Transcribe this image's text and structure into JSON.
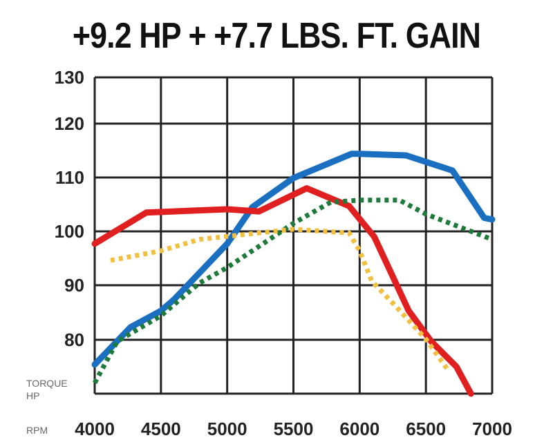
{
  "chart_data": {
    "type": "line",
    "title": "+9.2 HP + +7.7 LBS. FT. GAIN",
    "xlabel": "RPM",
    "ylabel_lines": [
      "TORQUE",
      "HP"
    ],
    "xlim": [
      4000,
      7000
    ],
    "ylim": [
      70,
      130
    ],
    "x_ticks": [
      "4000",
      "4500",
      "5000",
      "5500",
      "6000",
      "6500",
      "7000"
    ],
    "y_ticks": [
      "130",
      "120",
      "110",
      "100",
      "90",
      "80"
    ],
    "grid": true,
    "series": [
      {
        "color": "#1a6fc0",
        "style": "solid",
        "x": [
          4000,
          4270,
          4500,
          4600,
          5000,
          5190,
          5500,
          5940,
          6000,
          6350,
          6700,
          6940,
          7000
        ],
        "y": [
          75.4,
          82.3,
          85.3,
          87.4,
          97.7,
          104.5,
          109.9,
          114.4,
          114.4,
          114.1,
          111.3,
          102.5,
          102.2
        ]
      },
      {
        "color": "#e02020",
        "style": "solid",
        "x": [
          4000,
          4390,
          5000,
          5240,
          5600,
          5920,
          6110,
          6370,
          6540,
          6730,
          6840
        ],
        "y": [
          97.7,
          103.5,
          104.1,
          103.7,
          108.0,
          104.7,
          99.0,
          85.3,
          79.7,
          75.0,
          70.0
        ]
      },
      {
        "color": "#1e7a3a",
        "style": "dotted",
        "x": [
          4000,
          4170,
          4500,
          4790,
          5000,
          5270,
          5500,
          5780,
          6000,
          6300,
          6500,
          7000
        ],
        "y": [
          72.0,
          79.7,
          84.4,
          90.4,
          93.3,
          97.7,
          101.5,
          105.4,
          105.8,
          105.8,
          103.2,
          98.5
        ]
      },
      {
        "color": "#f2c040",
        "style": "dotted",
        "x": [
          4120,
          4500,
          4790,
          5200,
          5500,
          5920,
          6000,
          6090,
          6270,
          6500,
          6660
        ],
        "y": [
          94.6,
          96.4,
          98.5,
          99.6,
          100.4,
          99.7,
          96.4,
          90.8,
          86.2,
          80.1,
          74.6
        ]
      }
    ]
  }
}
